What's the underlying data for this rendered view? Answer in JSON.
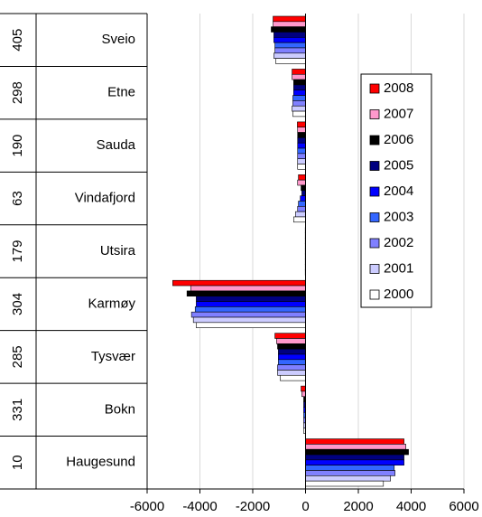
{
  "chart_data": {
    "type": "hbar",
    "categories": [
      "Sveio",
      "Etne",
      "Sauda",
      "Vindafjord",
      "Utsira",
      "Karmøy",
      "Tysvær",
      "Bokn",
      "Haugesund"
    ],
    "codes": [
      "405",
      "298",
      "190",
      "63",
      "179",
      "304",
      "285",
      "331",
      "10"
    ],
    "series": [
      {
        "name": "2008",
        "color": "#ff0000",
        "values": [
          -1230,
          -510,
          -310,
          -270,
          -10,
          -5030,
          -1160,
          -170,
          3730
        ]
      },
      {
        "name": "2007",
        "color": "#ff99cc",
        "values": [
          -1230,
          -510,
          -300,
          -300,
          -10,
          -4350,
          -1100,
          -140,
          3800
        ]
      },
      {
        "name": "2006",
        "color": "#000000",
        "values": [
          -1300,
          -450,
          -300,
          -170,
          -10,
          -4490,
          -1060,
          -70,
          3900
        ]
      },
      {
        "name": "2005",
        "color": "#000080",
        "values": [
          -1200,
          -450,
          -300,
          -140,
          -10,
          -4140,
          -1030,
          -70,
          3730
        ]
      },
      {
        "name": "2004",
        "color": "#0000ff",
        "values": [
          -1200,
          -450,
          -300,
          -200,
          -10,
          -4140,
          -1030,
          -70,
          3730
        ]
      },
      {
        "name": "2003",
        "color": "#3366ff",
        "values": [
          -1160,
          -480,
          -300,
          -270,
          -10,
          -4180,
          -1030,
          -70,
          3360
        ]
      },
      {
        "name": "2002",
        "color": "#8080ff",
        "values": [
          -1160,
          -480,
          -300,
          -300,
          -10,
          -4320,
          -1060,
          -70,
          3390
        ]
      },
      {
        "name": "2001",
        "color": "#ccccff",
        "values": [
          -1200,
          -510,
          -300,
          -380,
          -10,
          -4250,
          -1060,
          -70,
          3220
        ]
      },
      {
        "name": "2000",
        "color": "#ffffff",
        "values": [
          -1130,
          -480,
          -300,
          -450,
          -10,
          -4140,
          -960,
          -70,
          2950
        ]
      }
    ],
    "xlim": [
      -6000,
      6000
    ],
    "xticks": [
      -6000,
      -4000,
      -2000,
      0,
      2000,
      4000,
      6000
    ],
    "grid": true
  }
}
